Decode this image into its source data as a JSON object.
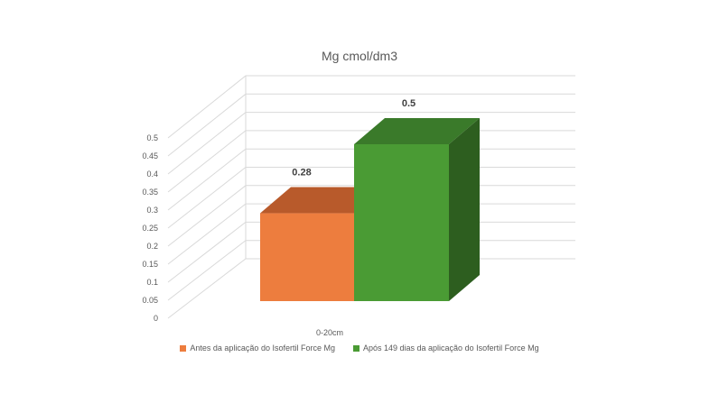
{
  "chart_data": {
    "type": "bar",
    "title": "Mg cmol/dm3",
    "categories": [
      "0-20cm"
    ],
    "series": [
      {
        "name": "Antes da aplicação do Isofertil Force Mg",
        "values": [
          0.28
        ],
        "color": "#ed7d3e",
        "top_color": "#b85a2b"
      },
      {
        "name": "Após 149 dias da aplicação do Isofertil Force Mg",
        "values": [
          0.5
        ],
        "color": "#4a9b34",
        "side_color": "#2d5e1f",
        "top_color": "#3a7a2a"
      }
    ],
    "yticks": [
      "0",
      "0.05",
      "0.1",
      "0.15",
      "0.2",
      "0.25",
      "0.3",
      "0.35",
      "0.4",
      "0.45",
      "0.5"
    ],
    "ylim": [
      0,
      0.5
    ],
    "data_labels": [
      "0.28",
      "0.5"
    ],
    "grid": true,
    "legend_position": "bottom"
  }
}
